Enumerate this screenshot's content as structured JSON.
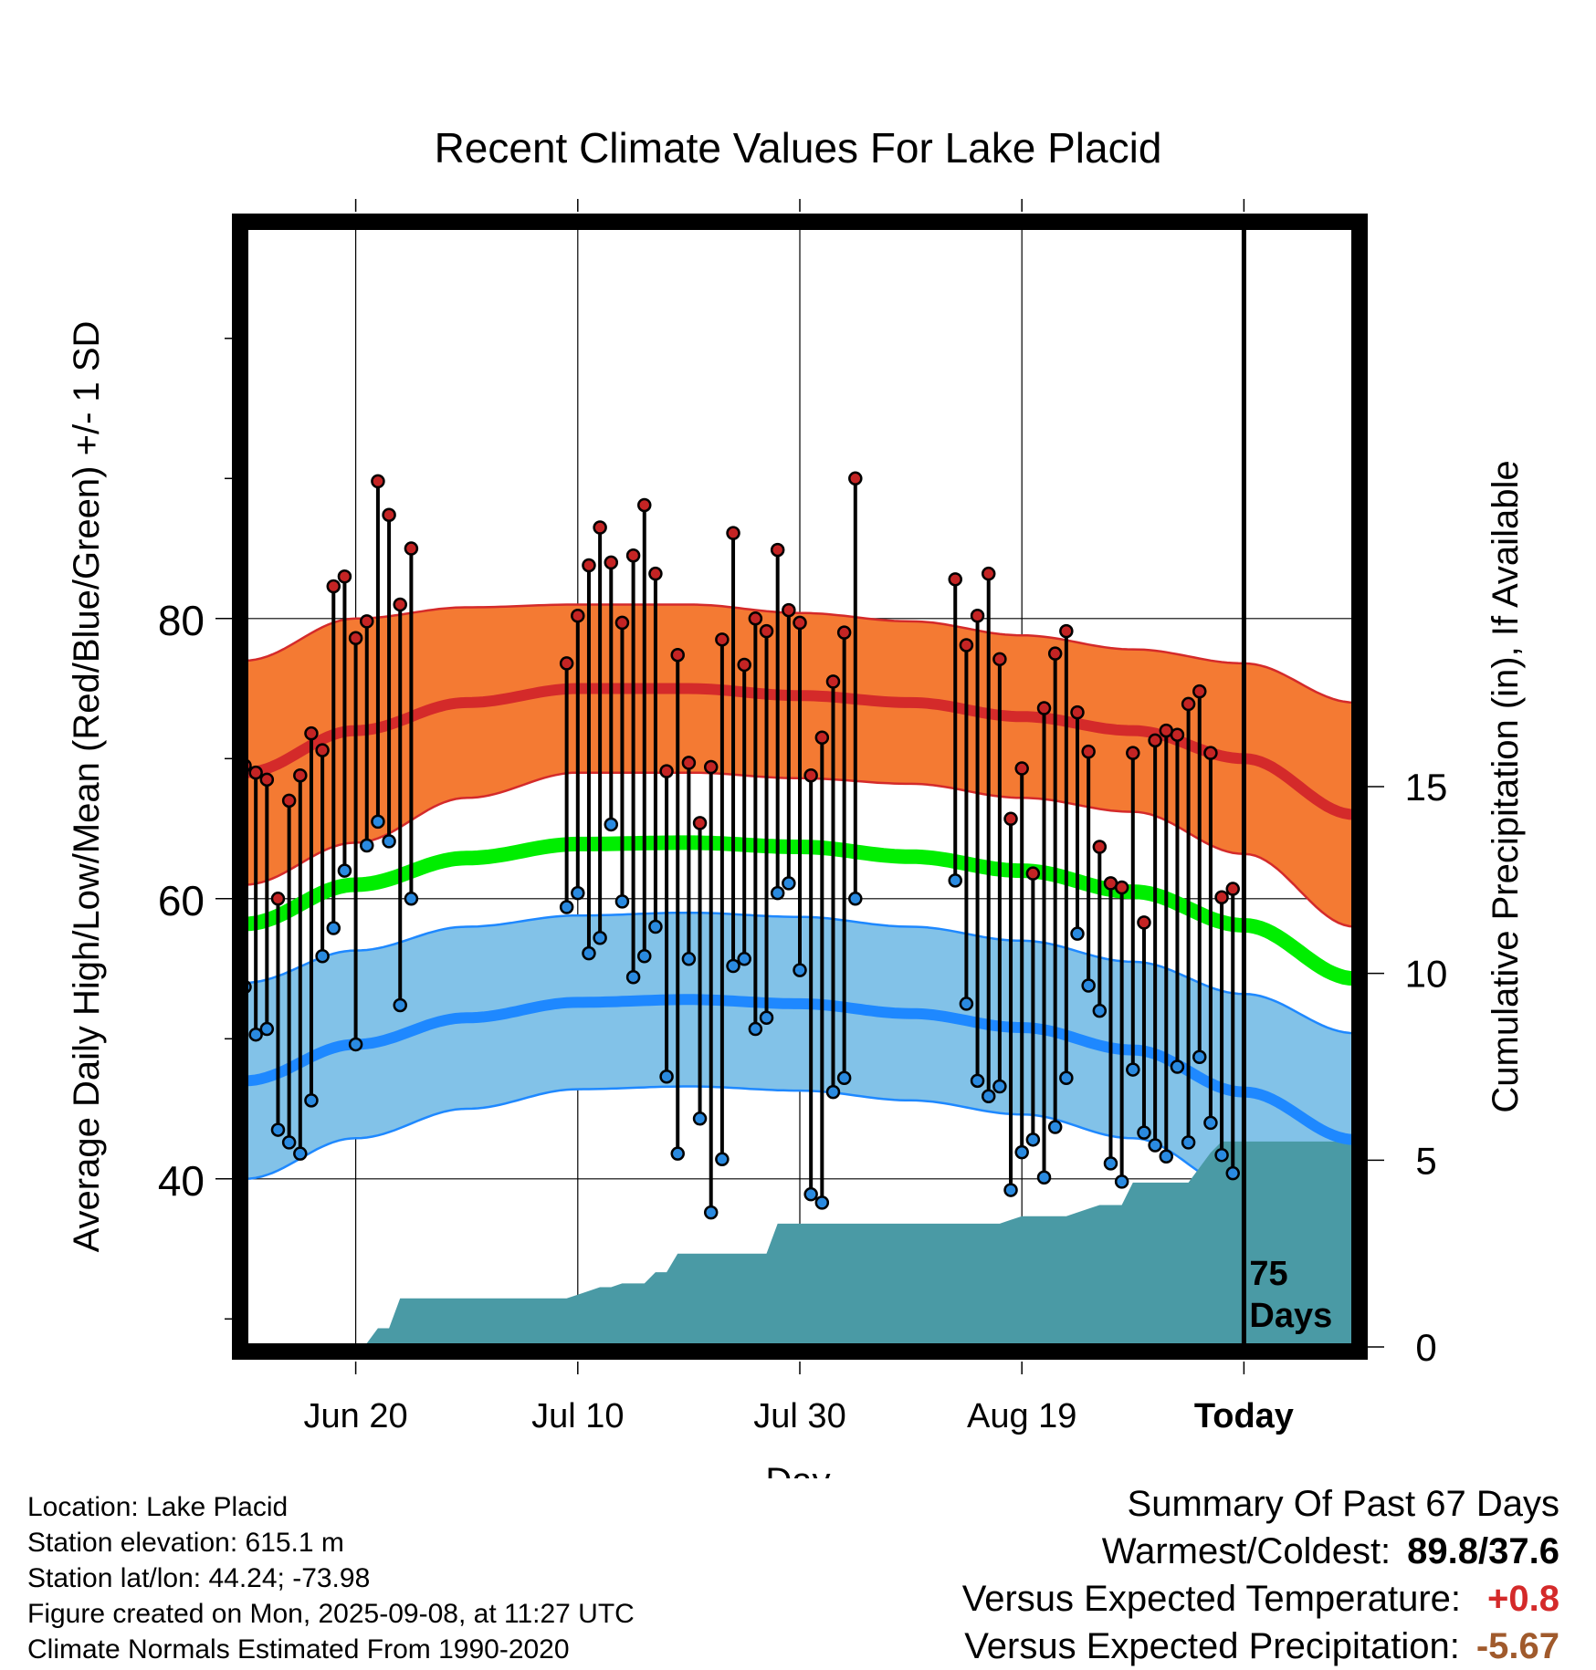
{
  "chart_data": {
    "type": "line",
    "title": "Recent Climate Values For Lake Placid",
    "xlabel": "Day",
    "ylabel": "Average Daily High/Low/Mean (Red/Blue/Green) +/- 1 SD",
    "y2label": "Cumulative Precipitation (in), If Available",
    "xlim": [
      0,
      100
    ],
    "ylim": [
      28,
      108
    ],
    "y2lim": [
      0,
      30
    ],
    "xticks": [
      {
        "x": 10,
        "label": "Jun 20"
      },
      {
        "x": 30,
        "label": "Jul 10"
      },
      {
        "x": 50,
        "label": "Jul 30"
      },
      {
        "x": 70,
        "label": "Aug 19"
      },
      {
        "x": 90,
        "label": "Today"
      }
    ],
    "yticks": [
      40,
      60,
      80
    ],
    "y2ticks": [
      0,
      5,
      10,
      15
    ],
    "grid": true,
    "today_label": "75\nDays",
    "colors": {
      "high_band": "#f47a33",
      "high_line": "#d42a2a",
      "low_band": "#82c2e8",
      "low_line": "#1e88ff",
      "mean_line": "#00ee00",
      "precip": "#4a9aa5"
    },
    "normals": {
      "x": [
        0,
        10,
        20,
        30,
        40,
        50,
        60,
        70,
        80,
        90,
        100
      ],
      "high_mean": [
        69,
        72,
        74,
        75,
        75,
        74.5,
        74,
        73,
        72,
        70,
        66
      ],
      "high_sd": [
        8,
        8,
        6.8,
        6,
        6,
        5.9,
        5.8,
        5.8,
        5.8,
        6.8,
        8
      ],
      "low_mean": [
        47,
        49.6,
        51.5,
        52.6,
        52.8,
        52.5,
        51.8,
        50.8,
        49.2,
        46.2,
        42.8
      ],
      "low_sd": [
        7,
        6.7,
        6.5,
        6.2,
        6.2,
        6.2,
        6.2,
        6.2,
        6.3,
        7,
        7.6
      ],
      "mean": [
        58.2,
        61,
        62.9,
        63.9,
        64,
        63.7,
        63,
        62,
        60.5,
        58.1,
        54.3
      ]
    },
    "series": [
      {
        "name": "High",
        "x": [
          0,
          1,
          2,
          3,
          4,
          5,
          6,
          7,
          8,
          9,
          10,
          11,
          12,
          13,
          14,
          15,
          29,
          30,
          31,
          32,
          33,
          34,
          35,
          36,
          37,
          38,
          39,
          40,
          41,
          42,
          43,
          44,
          45,
          46,
          47,
          48,
          49,
          50,
          51,
          52,
          53,
          54,
          55,
          64,
          65,
          66,
          67,
          68,
          69,
          70,
          71,
          72,
          73,
          74,
          75,
          76,
          77,
          78,
          79,
          80,
          81,
          82,
          83,
          84,
          85,
          86,
          87,
          88,
          89
        ],
        "values": [
          69.5,
          69,
          68.5,
          60,
          67,
          68.8,
          71.8,
          70.6,
          82.3,
          83,
          78.6,
          79.8,
          89.8,
          87.4,
          81,
          85,
          76.8,
          80.2,
          83.8,
          86.5,
          84,
          79.7,
          84.5,
          88.1,
          83.2,
          69.1,
          77.4,
          69.7,
          65.4,
          69.4,
          78.5,
          86.1,
          76.7,
          80,
          79.1,
          84.9,
          80.6,
          79.7,
          68.8,
          71.5,
          75.5,
          79,
          90,
          82.8,
          78.1,
          80.2,
          83.2,
          77.1,
          65.7,
          69.3,
          61.8,
          73.6,
          77.5,
          79.1,
          73.3,
          70.5,
          63.7,
          61.1,
          60.8,
          70.4,
          58.3,
          71.3,
          72,
          71.7,
          73.9,
          74.8,
          70.4,
          60.1,
          60.7
        ]
      },
      {
        "name": "Low",
        "x": [
          0,
          1,
          2,
          3,
          4,
          5,
          6,
          7,
          8,
          9,
          10,
          11,
          12,
          13,
          14,
          15,
          29,
          30,
          31,
          32,
          33,
          34,
          35,
          36,
          37,
          38,
          39,
          40,
          41,
          42,
          43,
          44,
          45,
          46,
          47,
          48,
          49,
          50,
          51,
          52,
          53,
          54,
          55,
          64,
          65,
          66,
          67,
          68,
          69,
          70,
          71,
          72,
          73,
          74,
          75,
          76,
          77,
          78,
          79,
          80,
          81,
          82,
          83,
          84,
          85,
          86,
          87,
          88,
          89
        ],
        "values": [
          53.7,
          50.3,
          50.7,
          43.5,
          42.6,
          41.8,
          45.6,
          55.9,
          57.9,
          62,
          49.6,
          63.8,
          65.5,
          64.1,
          52.4,
          60,
          59.4,
          60.4,
          56.1,
          57.2,
          65.3,
          59.8,
          54.4,
          55.9,
          58,
          47.3,
          41.8,
          55.7,
          44.3,
          37.6,
          41.4,
          55.2,
          55.7,
          50.7,
          51.5,
          60.4,
          61.1,
          54.9,
          38.9,
          38.3,
          46.2,
          47.2,
          60,
          61.3,
          52.5,
          47,
          45.9,
          46.6,
          39.2,
          41.9,
          42.8,
          40.1,
          43.7,
          47.2,
          57.5,
          53.8,
          52,
          41.1,
          39.8,
          47.8,
          43.3,
          42.4,
          41.6,
          48,
          42.6,
          48.7,
          44,
          41.7,
          40.4
        ]
      },
      {
        "name": "Cumulative Precipitation",
        "x": [
          0,
          10,
          11,
          12,
          13,
          14,
          15,
          16,
          17,
          18,
          19,
          20,
          21,
          22,
          23,
          24,
          25,
          26,
          27,
          28,
          29,
          30,
          31,
          32,
          33,
          34,
          35,
          36,
          37,
          38,
          39,
          40,
          41,
          42,
          43,
          44,
          45,
          46,
          47,
          48,
          49,
          50,
          51,
          52,
          53,
          54,
          55,
          56,
          57,
          58,
          59,
          60,
          61,
          62,
          63,
          64,
          65,
          66,
          67,
          68,
          69,
          70,
          71,
          72,
          73,
          74,
          75,
          76,
          77,
          78,
          79,
          80,
          81,
          82,
          83,
          84,
          85,
          86,
          87,
          88,
          89,
          90,
          100
        ],
        "values": [
          0,
          0,
          0.1,
          0.5,
          0.5,
          1.3,
          1.3,
          1.3,
          1.3,
          1.3,
          1.3,
          1.3,
          1.3,
          1.3,
          1.3,
          1.3,
          1.3,
          1.3,
          1.3,
          1.3,
          1.3,
          1.4,
          1.5,
          1.6,
          1.6,
          1.7,
          1.7,
          1.7,
          2,
          2,
          2.5,
          2.5,
          2.5,
          2.5,
          2.5,
          2.5,
          2.5,
          2.5,
          2.5,
          3.3,
          3.3,
          3.3,
          3.3,
          3.3,
          3.3,
          3.3,
          3.3,
          3.3,
          3.3,
          3.3,
          3.3,
          3.3,
          3.3,
          3.3,
          3.3,
          3.3,
          3.3,
          3.3,
          3.3,
          3.3,
          3.4,
          3.5,
          3.5,
          3.5,
          3.5,
          3.5,
          3.6,
          3.7,
          3.8,
          3.8,
          3.8,
          4.4,
          4.4,
          4.4,
          4.4,
          4.4,
          4.4,
          4.8,
          5.2,
          5.5,
          5.5,
          5.5,
          5.5
        ]
      }
    ]
  },
  "footer": {
    "location": "Location: Lake Placid",
    "elevation": "Station elevation: 615.1 m",
    "latlon": "Station lat/lon: 44.24; -73.98",
    "created": "Figure created on Mon, 2025-09-08, at 11:27 UTC",
    "normals": "Climate Normals Estimated From 1990-2020"
  },
  "summary": {
    "heading": "Summary Of Past 67 Days",
    "extremes_label": "Warmest/Coldest:",
    "extremes_value": "89.8/37.6",
    "temp_label": "Versus Expected Temperature:",
    "temp_value": "+0.8",
    "temp_color": "#d42a2a",
    "precip_label": "Versus Expected Precipitation:",
    "precip_value": "-5.67",
    "precip_color": "#a05a2c"
  }
}
